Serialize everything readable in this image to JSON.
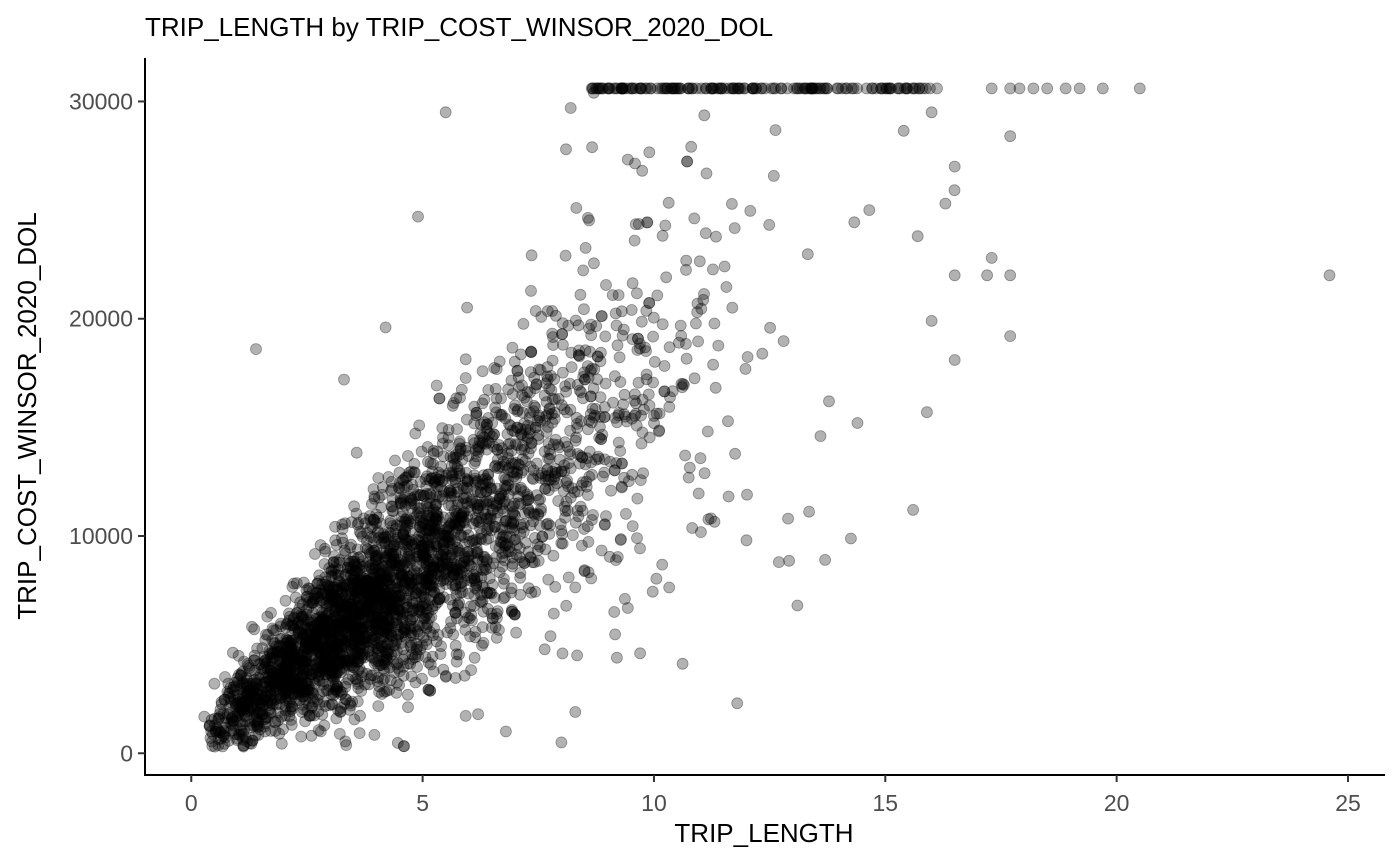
{
  "chart_data": {
    "type": "scatter",
    "title": "TRIP_LENGTH by TRIP_COST_WINSOR_2020_DOL",
    "xlabel": "TRIP_LENGTH",
    "ylabel": "TRIP_COST_WINSOR_2020_DOL",
    "xlim": [
      -1.0,
      25.8
    ],
    "ylim": [
      -1000,
      32000
    ],
    "x_ticks": [
      0,
      5,
      10,
      15,
      20,
      25
    ],
    "y_ticks": [
      0,
      10000,
      20000,
      30000
    ],
    "x_tick_labels": [
      "0",
      "5",
      "10",
      "15",
      "20",
      "25"
    ],
    "y_tick_labels": [
      "0",
      "10000",
      "20000",
      "30000"
    ],
    "grid": false,
    "legend": "none",
    "point_color": "#000000",
    "point_opacity": 0.3,
    "notes_cap_value": 30600,
    "series": [
      {
        "values_outliers": [
          [
            24.6,
            22000
          ],
          [
            20.5,
            30600
          ],
          [
            19.7,
            30600
          ],
          [
            19.2,
            30600
          ],
          [
            18.9,
            30600
          ],
          [
            18.5,
            30600
          ],
          [
            18.2,
            30600
          ],
          [
            17.9,
            30600
          ],
          [
            17.7,
            30600
          ],
          [
            17.3,
            30600
          ],
          [
            17.7,
            28400
          ],
          [
            17.3,
            22800
          ],
          [
            17.2,
            22000
          ],
          [
            17.7,
            22000
          ],
          [
            17.7,
            19200
          ],
          [
            16.5,
            27000
          ],
          [
            16.5,
            22000
          ],
          [
            16.5,
            18100
          ],
          [
            16.0,
            29500
          ],
          [
            16.0,
            19900
          ],
          [
            15.9,
            15700
          ],
          [
            15.6,
            11200
          ],
          [
            16.3,
            25300
          ],
          [
            15.7,
            23800
          ],
          [
            1.4,
            18600
          ],
          [
            3.3,
            17200
          ],
          [
            4.2,
            19600
          ],
          [
            4.9,
            24700
          ],
          [
            5.5,
            29500
          ],
          [
            8.0,
            500
          ],
          [
            8.3,
            1900
          ],
          [
            6.8,
            1000
          ],
          [
            6.2,
            1800
          ],
          [
            11.8,
            2300
          ],
          [
            12.7,
            8800
          ],
          [
            13.1,
            6800
          ],
          [
            13.7,
            8900
          ],
          [
            9.7,
            4600
          ],
          [
            9.2,
            4400
          ],
          [
            2.8,
            1000
          ],
          [
            1.9,
            900
          ],
          [
            0.5,
            3200
          ],
          [
            0.8,
            3200
          ],
          [
            12.0,
            9800
          ],
          [
            12.9,
            10800
          ],
          [
            14.4,
            15200
          ],
          [
            13.6,
            14600
          ],
          [
            8.2,
            29700
          ],
          [
            8.7,
            30400
          ],
          [
            8.1,
            27800
          ]
        ]
      }
    ]
  }
}
